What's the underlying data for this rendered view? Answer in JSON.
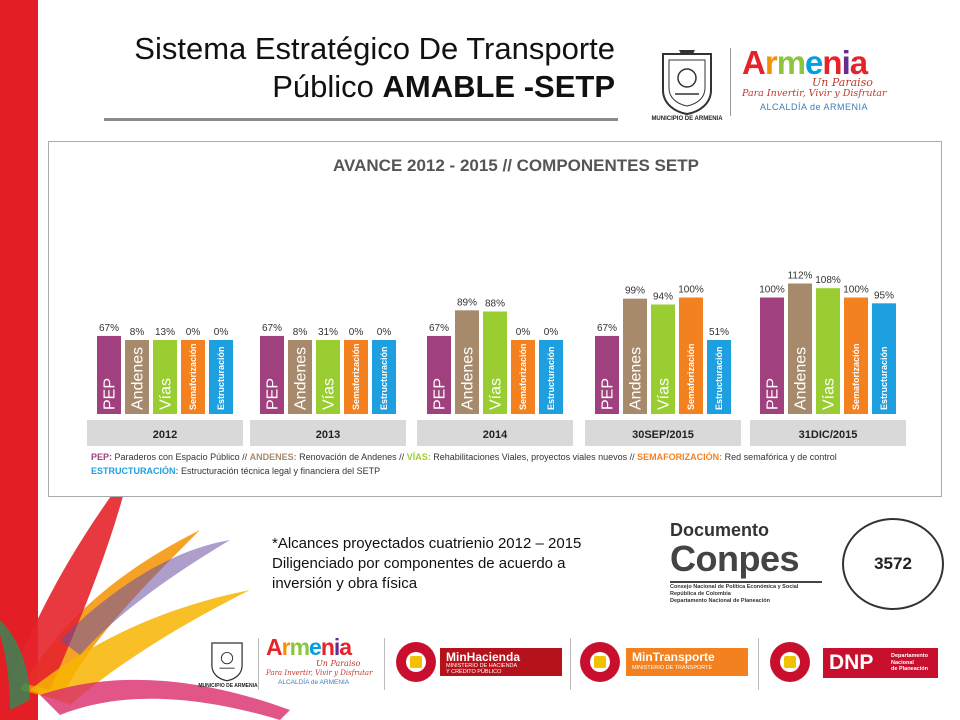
{
  "header": {
    "title_line1": "Sistema Estratégico De Transporte",
    "title_line2_normal": "Público ",
    "title_line2_bold": "AMABLE -SETP",
    "seal_caption": "MUNICIPIO DE ARMENIA",
    "armenia_word": [
      "A",
      "r",
      "m",
      "e",
      "n",
      "i",
      "a"
    ],
    "armenia_sub": "Un Paraiso",
    "armenia_slogan": "Para Invertir, Vivir y Disfrutar",
    "armenia_alcaldia": "ALCALDÍA de ARMENIA"
  },
  "chart_data": {
    "type": "bar",
    "title": "AVANCE 2012 - 2015 // COMPONENTES SETP",
    "categories": [
      "2012",
      "2013",
      "2014",
      "30SEP/2015",
      "31DIC/2015"
    ],
    "series": [
      {
        "name": "PEP",
        "values": [
          67,
          67,
          67,
          67,
          100
        ],
        "labels": [
          "67%",
          "67%",
          "67%",
          "67%",
          "100%"
        ]
      },
      {
        "name": "Andenes",
        "values": [
          8,
          8,
          89,
          99,
          112
        ],
        "labels": [
          "8%",
          "8%",
          "89%",
          "99%",
          "112%"
        ]
      },
      {
        "name": "Vías",
        "values": [
          13,
          31,
          88,
          94,
          108
        ],
        "labels": [
          "13%",
          "31%",
          "88%",
          "94%",
          "108%"
        ]
      },
      {
        "name": "Semaforización",
        "values": [
          0,
          0,
          0,
          100,
          100
        ],
        "labels": [
          "0%",
          "0%",
          "0%",
          "100%",
          "100%"
        ]
      },
      {
        "name": "Estructuración",
        "values": [
          0,
          0,
          0,
          51,
          95
        ],
        "labels": [
          "0%",
          "0%",
          "0%",
          "51%",
          "95%"
        ]
      }
    ],
    "colors": [
      "#a0407f",
      "#a68a6b",
      "#9acd32",
      "#f4811f",
      "#1e9fe0"
    ],
    "ylim": [
      0,
      112
    ],
    "legend": {
      "line1": [
        {
          "key": "PEP:",
          "text": " Paraderos con Espacio Público // "
        },
        {
          "key": "ANDENES:",
          "text": " Renovación de Andenes // "
        },
        {
          "key": "VÍAS:",
          "text": " Rehabilitaciones Viales, proyectos viales nuevos  // "
        },
        {
          "key": "SEMAFORIZACIÓN:",
          "text": " Red semafórica y de control"
        }
      ],
      "line2": [
        {
          "key": "ESTRUCTURACIÓN:",
          "text": " Estructuración técnica legal y financiera del SETP"
        }
      ],
      "key_colors": [
        "#a0407f",
        "#a68a6b",
        "#9acd32",
        "#f4811f",
        "#1e9fe0"
      ]
    }
  },
  "note": {
    "line1": "*Alcances proyectados cuatrienio 2012 – 2015",
    "line2": "Diligenciado por componentes de acuerdo a",
    "line3": "inversión y obra física"
  },
  "conpes": {
    "doc": "Documento",
    "big": "Conpes",
    "lines": [
      "Consejo Nacional de Política Económica y Social",
      "República de Colombia",
      "Departamento Nacional de Planeación"
    ],
    "number": "3572"
  },
  "footer": {
    "seal_caption": "MUNICIPIO DE ARMENIA",
    "armenia_word": [
      "A",
      "r",
      "m",
      "e",
      "n",
      "i",
      "a"
    ],
    "armenia_sub": "Un Paraiso",
    "armenia_slogan": "Para Invertir, Vivir y Disfrutar",
    "armenia_alcaldia": "ALCALDÍA de ARMENIA",
    "minhacienda": {
      "title": "MinHacienda",
      "sub1": "MINISTERIO DE HACIENDA",
      "sub2": "Y CRÉDITO PÚBLICO",
      "color": "#c8102e"
    },
    "mintransporte": {
      "title": "MinTransporte",
      "sub1": "MINISTERIO DE TRANSPORTE",
      "color": "#f4811f"
    },
    "dnp": {
      "title": "DNP",
      "sub1": "Departamento",
      "sub2": "Nacional",
      "sub3": "de Planeación"
    }
  }
}
